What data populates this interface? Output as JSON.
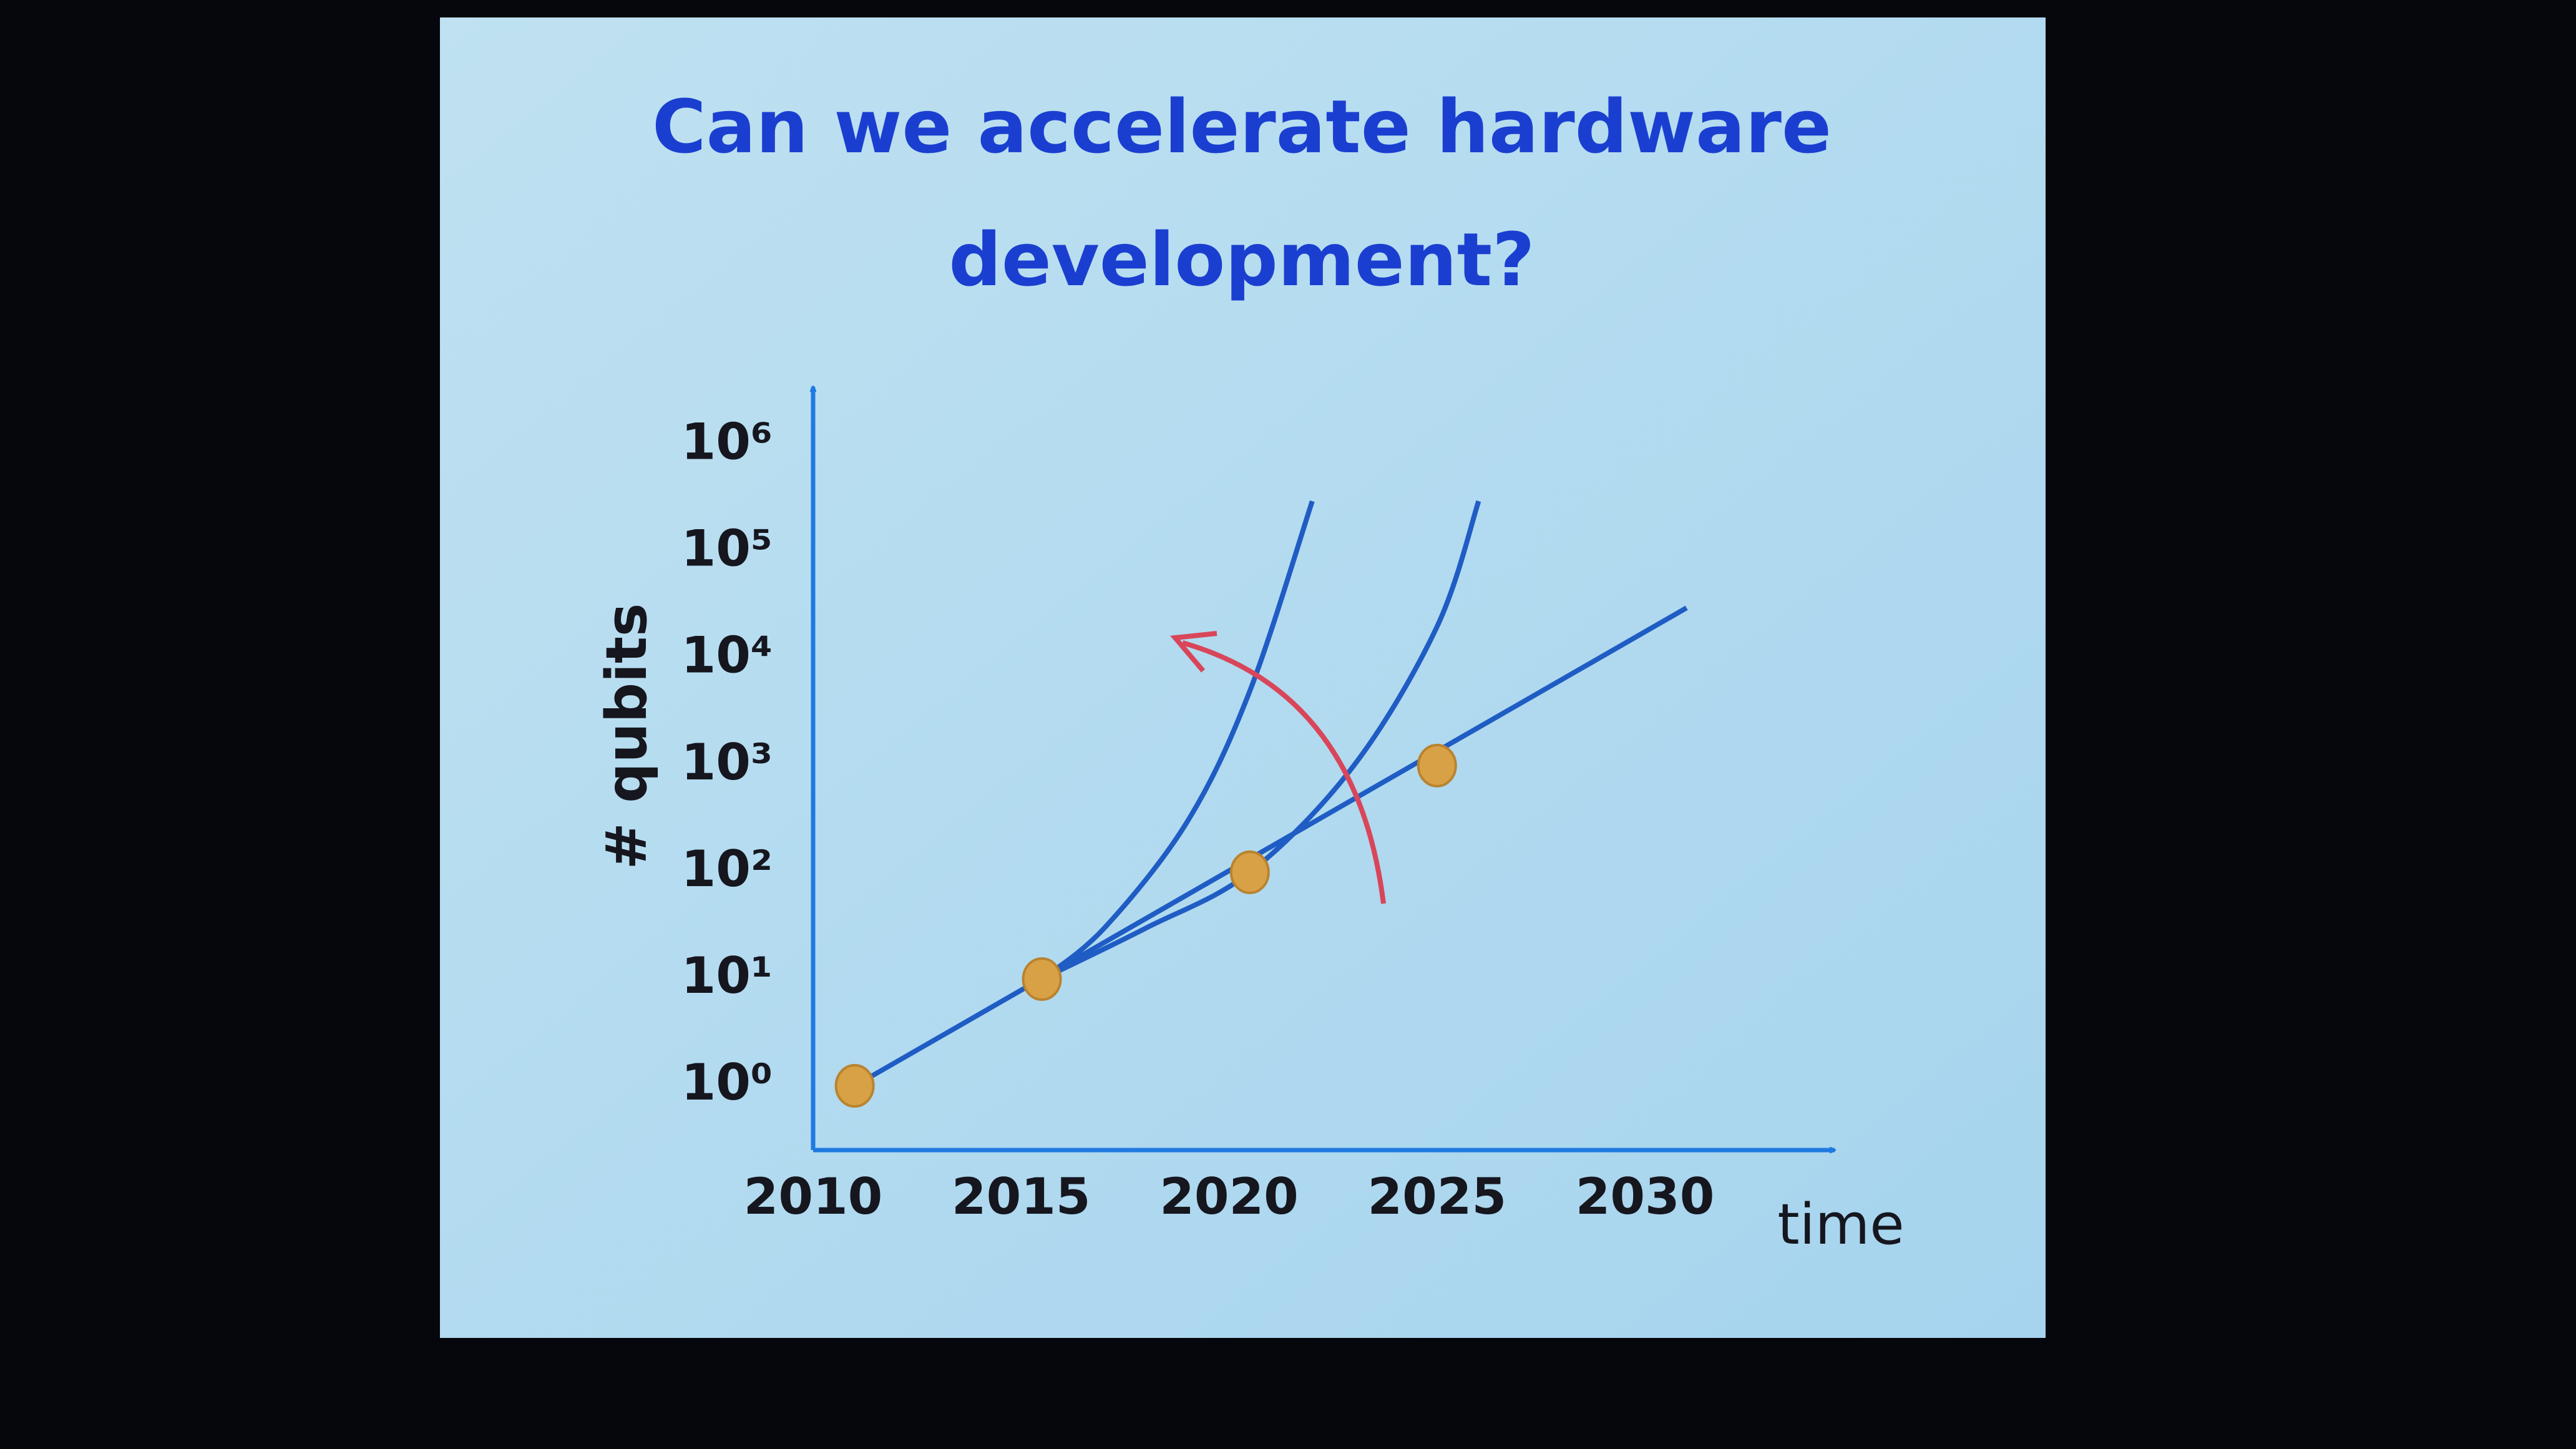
{
  "chart_data": {
    "type": "line",
    "title": "Can we accelerate hardware development?",
    "title_lines": [
      "Can we accelerate hardware",
      "development?"
    ],
    "x_label": "time",
    "y_label": "# qubits",
    "log_y": true,
    "grid": false,
    "xlim": [
      2010,
      2034.5
    ],
    "xticks": [
      2010,
      2015,
      2020,
      2025,
      2030
    ],
    "ylim": [
      0.25,
      3000000
    ],
    "yticks": [
      {
        "value": 1,
        "label": "10⁰"
      },
      {
        "value": 10,
        "label": "10¹"
      },
      {
        "value": 100,
        "label": "10²"
      },
      {
        "value": 1000,
        "label": "10³"
      },
      {
        "value": 10000,
        "label": "10⁴"
      },
      {
        "value": 100000,
        "label": "10⁵"
      },
      {
        "value": 1000000,
        "label": "10⁶"
      }
    ],
    "series": [
      {
        "mode": "line",
        "color": "#1f5cc4",
        "x": [
          2011,
          2031
        ],
        "values": [
          1,
          30000
        ]
      },
      {
        "mode": "line",
        "color": "#1f5cc4",
        "x": [
          2015.5,
          2017,
          2019,
          2020.5,
          2022
        ],
        "values": [
          10,
          30,
          300,
          5000,
          300000
        ]
      },
      {
        "mode": "line",
        "color": "#1f5cc4",
        "x": [
          2015.5,
          2018,
          2020.5,
          2023,
          2025,
          2026
        ],
        "values": [
          10,
          30,
          100,
          1000,
          20000,
          300000
        ]
      },
      {
        "mode": "markers",
        "color": "#d9a145",
        "x": [
          2011,
          2015.5,
          2020.5,
          2025
        ],
        "values": [
          1,
          10,
          100,
          1000
        ]
      }
    ]
  }
}
